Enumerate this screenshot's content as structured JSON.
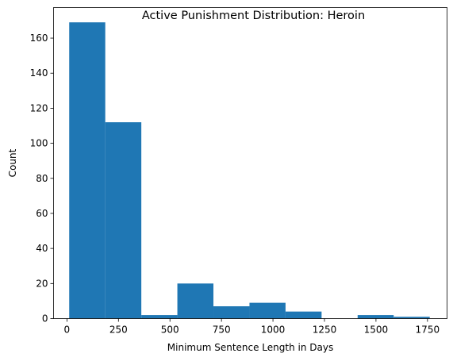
{
  "chart_data": {
    "type": "bar",
    "title": "Active Punishment Distribution: Heroin",
    "xlabel": "Minimum Sentence Length in Days",
    "ylabel": "Count",
    "xlim": [
      -65,
      1845
    ],
    "ylim": [
      0,
      177.45
    ],
    "xticks": [
      0,
      250,
      500,
      750,
      1000,
      1250,
      1500,
      1750
    ],
    "yticks": [
      0,
      20,
      40,
      60,
      80,
      100,
      120,
      140,
      160
    ],
    "bin_edges": [
      11,
      186,
      361,
      536,
      711,
      886,
      1061,
      1236,
      1411,
      1586,
      1761
    ],
    "values": [
      169,
      112,
      2,
      20,
      7,
      9,
      4,
      0,
      2,
      1
    ],
    "bar_color": "#1f77b4",
    "grid": false,
    "legend": "none"
  }
}
